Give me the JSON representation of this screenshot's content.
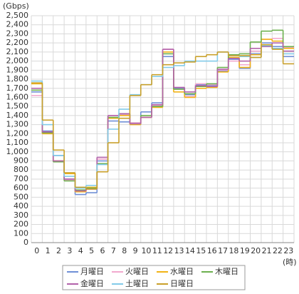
{
  "chart_data": {
    "type": "step",
    "y_unit": "(Gbps)",
    "x_unit": "(時)",
    "categories": [
      "0",
      "1",
      "2",
      "3",
      "4",
      "5",
      "6",
      "7",
      "8",
      "9",
      "10",
      "11",
      "12",
      "13",
      "14",
      "15",
      "16",
      "17",
      "18",
      "19",
      "20",
      "21",
      "22",
      "23"
    ],
    "ylim": [
      0,
      2500
    ],
    "yticks": [
      0,
      100,
      200,
      300,
      400,
      500,
      600,
      700,
      800,
      900,
      {
        "value": 1000,
        "label": "1,000"
      },
      {
        "value": 1100,
        "label": "1,100"
      },
      {
        "value": 1200,
        "label": "1,200"
      },
      {
        "value": 1300,
        "label": "1,300"
      },
      {
        "value": 1400,
        "label": "1,400"
      },
      {
        "value": 1500,
        "label": "1,500"
      },
      {
        "value": 1600,
        "label": "1,600"
      },
      {
        "value": 1700,
        "label": "1,700"
      },
      {
        "value": 1800,
        "label": "1,800"
      },
      {
        "value": 1900,
        "label": "1,900"
      },
      {
        "value": 2000,
        "label": "2,000"
      },
      {
        "value": 2100,
        "label": "2,100"
      },
      {
        "value": 2200,
        "label": "2,200"
      },
      {
        "value": 2300,
        "label": "2,300"
      },
      {
        "value": 2400,
        "label": "2,400"
      },
      {
        "value": 2500,
        "label": "2,500"
      }
    ],
    "grid": true,
    "legend": "bottom",
    "series": [
      {
        "name": "月曜日",
        "color": "#6f8fd6",
        "values": [
          1660,
          1230,
          960,
          700,
          530,
          550,
          900,
          1340,
          1330,
          1320,
          1440,
          1540,
          2050,
          1700,
          1630,
          1740,
          1730,
          1890,
          2020,
          1920,
          2080,
          2200,
          2160,
          2050
        ]
      },
      {
        "name": "火曜日",
        "color": "#f2a9cf",
        "values": [
          1620,
          1200,
          900,
          690,
          570,
          600,
          920,
          1400,
          1410,
          1320,
          1380,
          1510,
          2130,
          1690,
          1610,
          1750,
          1740,
          1900,
          2000,
          1960,
          2110,
          2240,
          2250,
          2150
        ]
      },
      {
        "name": "水曜日",
        "color": "#f2b316",
        "values": [
          1750,
          1200,
          900,
          760,
          560,
          610,
          870,
          1370,
          1400,
          1300,
          1380,
          1490,
          2100,
          1660,
          1600,
          1700,
          1710,
          1880,
          2040,
          1930,
          2070,
          2240,
          2220,
          2140
        ]
      },
      {
        "name": "木曜日",
        "color": "#6cb04e",
        "values": [
          1680,
          1210,
          890,
          680,
          580,
          600,
          870,
          1380,
          1420,
          1310,
          1400,
          1500,
          2080,
          1690,
          1640,
          1720,
          1750,
          1930,
          2070,
          2080,
          2210,
          2330,
          2340,
          2160
        ]
      },
      {
        "name": "金曜日",
        "color": "#b262aa",
        "values": [
          1700,
          1220,
          900,
          700,
          570,
          590,
          940,
          1400,
          1420,
          1310,
          1380,
          1520,
          2130,
          1710,
          1660,
          1730,
          1720,
          1910,
          2030,
          2000,
          2140,
          2160,
          2200,
          2110
        ]
      },
      {
        "name": "土曜日",
        "color": "#82cbe9",
        "values": [
          1780,
          1300,
          960,
          730,
          600,
          630,
          860,
          1250,
          1470,
          1630,
          1740,
          1830,
          1930,
          1950,
          2000,
          2000,
          2000,
          2100,
          2060,
          2050,
          2040,
          2170,
          2140,
          2080
        ]
      },
      {
        "name": "日曜日",
        "color": "#c9a02a",
        "values": [
          1760,
          1350,
          1020,
          770,
          610,
          590,
          780,
          1100,
          1370,
          1620,
          1740,
          1850,
          1960,
          1980,
          1990,
          2050,
          2070,
          2100,
          2060,
          2060,
          2040,
          2180,
          2130,
          1970
        ]
      }
    ]
  }
}
